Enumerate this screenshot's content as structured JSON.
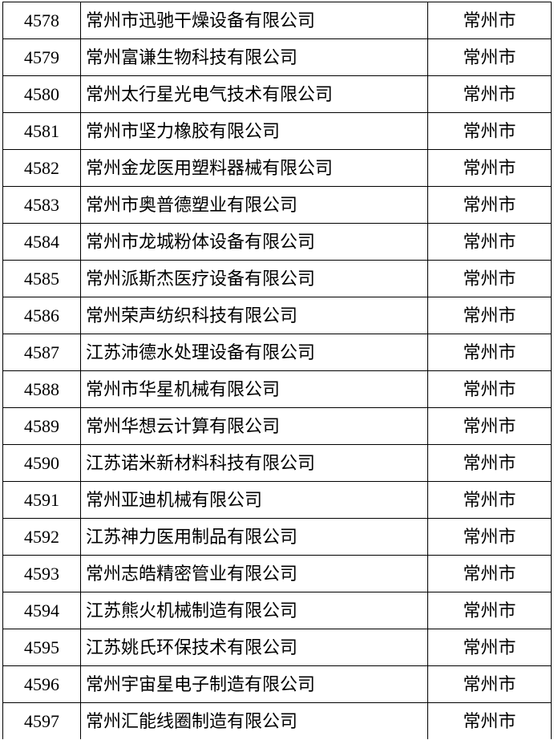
{
  "table": {
    "rows": [
      [
        "4578",
        "常州市迅驰干燥设备有限公司",
        "常州市"
      ],
      [
        "4579",
        "常州富谦生物科技有限公司",
        "常州市"
      ],
      [
        "4580",
        "常州太行星光电气技术有限公司",
        "常州市"
      ],
      [
        "4581",
        "常州市坚力橡胶有限公司",
        "常州市"
      ],
      [
        "4582",
        "常州金龙医用塑料器械有限公司",
        "常州市"
      ],
      [
        "4583",
        "常州市奥普德塑业有限公司",
        "常州市"
      ],
      [
        "4584",
        "常州市龙城粉体设备有限公司",
        "常州市"
      ],
      [
        "4585",
        "常州派斯杰医疗设备有限公司",
        "常州市"
      ],
      [
        "4586",
        "常州荣声纺织科技有限公司",
        "常州市"
      ],
      [
        "4587",
        "江苏沛德水处理设备有限公司",
        "常州市"
      ],
      [
        "4588",
        "常州市华星机械有限公司",
        "常州市"
      ],
      [
        "4589",
        "常州华想云计算有限公司",
        "常州市"
      ],
      [
        "4590",
        "江苏诺米新材料科技有限公司",
        "常州市"
      ],
      [
        "4591",
        "常州亚迪机械有限公司",
        "常州市"
      ],
      [
        "4592",
        "江苏神力医用制品有限公司",
        "常州市"
      ],
      [
        "4593",
        "常州志皓精密管业有限公司",
        "常州市"
      ],
      [
        "4594",
        "江苏熊火机械制造有限公司",
        "常州市"
      ],
      [
        "4595",
        "江苏姚氏环保技术有限公司",
        "常州市"
      ],
      [
        "4596",
        "常州宇宙星电子制造有限公司",
        "常州市"
      ],
      [
        "4597",
        "常州汇能线圈制造有限公司",
        "常州市"
      ]
    ]
  }
}
